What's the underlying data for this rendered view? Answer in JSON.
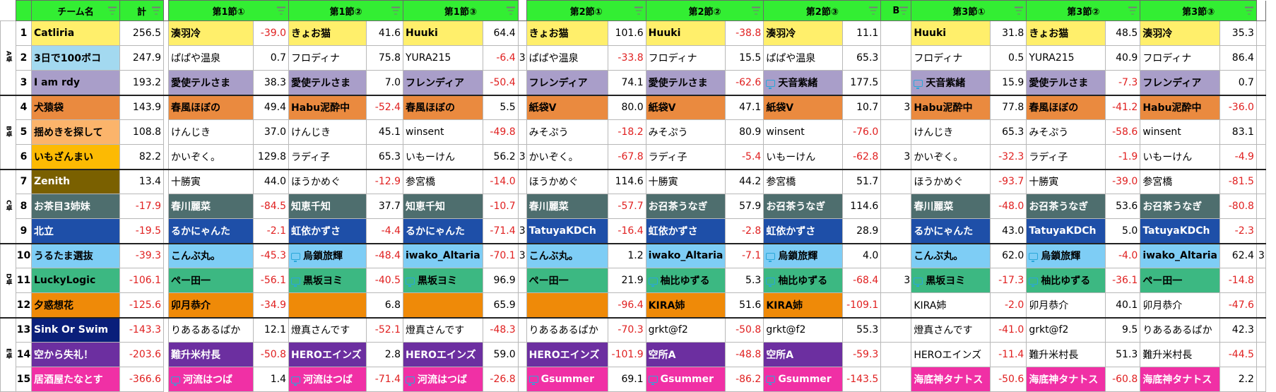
{
  "header": {
    "team": "チーム名",
    "total": "計",
    "s1": "第1節①",
    "s2": "第1節②",
    "s3": "第1節③",
    "s4": "第2節①",
    "s5": "第2節②",
    "s6": "第2節③",
    "b": "B",
    "s7": "第3節①",
    "s8": "第3節②",
    "s9": "第3節③"
  },
  "groups": [
    {
      "label": "A卓",
      "rows": 3
    },
    {
      "label": "B卓",
      "rows": 3
    },
    {
      "label": "C卓",
      "rows": 3
    },
    {
      "label": "D卓",
      "rows": 3
    },
    {
      "label": "E卓",
      "rows": 3
    }
  ],
  "colors": {
    "header_green": "#33ee33",
    "negative": "#e02020",
    "yellow": "#ffef6b",
    "lightblue": "#a3d9f0",
    "lavender": "#a99ec9",
    "orange": "#ea8a3f",
    "peach": "#fbb46b",
    "amber": "#fcba03",
    "olive": "#7a6000",
    "teal": "#4e6e6e",
    "navy": "#1e4fa8",
    "sky": "#7ecdf5",
    "green": "#3cb882",
    "darkorange": "#ef8a08",
    "darkblue": "#0a1f7a",
    "purple": "#6c2fa0",
    "pink": "#f030a5"
  },
  "rows": [
    {
      "rank": "1",
      "team": "Catliria",
      "tc": "yellow",
      "total": "256.5",
      "g": [
        [
          "湊羽冷",
          "-39.0",
          "yellow"
        ],
        [
          "きょお猫",
          "41.6",
          "yellow"
        ],
        [
          "Huuki",
          "64.4",
          "yellow"
        ],
        [
          "きょお猫",
          "101.6",
          "yellow"
        ],
        [
          "Huuki",
          "-38.8",
          "yellow"
        ],
        [
          "湊羽冷",
          "11.1",
          "yellow"
        ],
        [
          "Huuki",
          "31.8",
          "yellow"
        ],
        [
          "きょお猫",
          "48.5",
          "yellow"
        ],
        [
          "湊羽冷",
          "35.3",
          "yellow"
        ]
      ],
      "b1": "",
      "b2": "",
      "b3": ""
    },
    {
      "rank": "2",
      "team": "3日で100ボコ",
      "tc": "lightblue",
      "total": "247.9",
      "g": [
        [
          "ぱぱや温泉",
          "0.7",
          ""
        ],
        [
          "フロディナ",
          "75.8",
          ""
        ],
        [
          "YURA215",
          "-6.4",
          ""
        ],
        [
          "ぱぱや温泉",
          "-33.8",
          ""
        ],
        [
          "フロディナ",
          "15.5",
          ""
        ],
        [
          "ぱぱや温泉",
          "65.3",
          ""
        ],
        [
          "フロディナ",
          "0.5",
          ""
        ],
        [
          "YURA215",
          "40.9",
          ""
        ],
        [
          "フロディナ",
          "86.4",
          ""
        ]
      ],
      "b1": "3",
      "b2": "",
      "b3": ""
    },
    {
      "rank": "3",
      "team": "I am rdy",
      "tc": "lavender",
      "total": "193.2",
      "g": [
        [
          "愛使テルさま",
          "38.3",
          "lavender"
        ],
        [
          "愛使テルさま",
          "7.0",
          "lavender"
        ],
        [
          "フレンディア",
          "-50.4",
          "lavender"
        ],
        [
          "フレンディア",
          "74.1",
          "lavender"
        ],
        [
          "愛使テルさま",
          "-62.6",
          "lavender"
        ],
        [
          "天音紫緒",
          "177.5",
          "lavender"
        ],
        [
          "天音紫緒",
          "15.9",
          "lavender"
        ],
        [
          "愛使テルさま",
          "-7.3",
          "lavender"
        ],
        [
          "フレンディア",
          "0.7",
          "lavender"
        ]
      ],
      "b1": "",
      "b2": "",
      "b3": ""
    },
    {
      "rank": "4",
      "team": "犬猿袋",
      "tc": "orange",
      "total": "143.9",
      "g": [
        [
          "春風ほぼの",
          "49.4",
          "orange"
        ],
        [
          "Habu泥酔中",
          "-52.4",
          "orange"
        ],
        [
          "春風ほぼの",
          "5.5",
          "orange"
        ],
        [
          "紙袋V",
          "80.0",
          "orange"
        ],
        [
          "紙袋V",
          "47.1",
          "orange"
        ],
        [
          "紙袋V",
          "10.7",
          "orange"
        ],
        [
          "Habu泥酔中",
          "77.8",
          "orange"
        ],
        [
          "春風ほぼの",
          "-41.2",
          "orange"
        ],
        [
          "Habu泥酔中",
          "-36.0",
          "orange"
        ]
      ],
      "b1": "",
      "b2": "3",
      "b3": ""
    },
    {
      "rank": "5",
      "team": "揺めきを探して",
      "tc": "peach",
      "total": "108.8",
      "g": [
        [
          "けんじき",
          "37.0",
          ""
        ],
        [
          "けんじき",
          "45.1",
          ""
        ],
        [
          "winsent",
          "-49.8",
          ""
        ],
        [
          "みそぷう",
          "-18.2",
          ""
        ],
        [
          "みそぷう",
          "80.9",
          ""
        ],
        [
          "winsent",
          "-76.0",
          ""
        ],
        [
          "けんじき",
          "65.3",
          ""
        ],
        [
          "みそぷう",
          "-58.6",
          ""
        ],
        [
          "winsent",
          "83.1",
          ""
        ]
      ],
      "b1": "",
      "b2": "",
      "b3": ""
    },
    {
      "rank": "6",
      "team": "いもざんまい",
      "tc": "amber",
      "total": "82.2",
      "g": [
        [
          "かいぞく。",
          "129.8",
          ""
        ],
        [
          "ラディ子",
          "65.3",
          ""
        ],
        [
          "いもーけん",
          "56.2",
          ""
        ],
        [
          "かいぞく。",
          "-67.8",
          ""
        ],
        [
          "ラディ子",
          "-5.4",
          ""
        ],
        [
          "いもーけん",
          "-62.8",
          ""
        ],
        [
          "かいぞく。",
          "-32.3",
          ""
        ],
        [
          "ラディ子",
          "-1.9",
          ""
        ],
        [
          "いもーけん",
          "-4.9",
          ""
        ]
      ],
      "b1": "3",
      "b2": "3",
      "b3": ""
    },
    {
      "rank": "7",
      "team": "Zenith",
      "tc": "olive",
      "total": "13.4",
      "g": [
        [
          "十勝寅",
          "44.0",
          ""
        ],
        [
          "ほうかめぐ",
          "-12.9",
          ""
        ],
        [
          "参宮橋",
          "-14.0",
          ""
        ],
        [
          "ほうかめぐ",
          "114.6",
          ""
        ],
        [
          "十勝寅",
          "44.2",
          ""
        ],
        [
          "参宮橋",
          "51.7",
          ""
        ],
        [
          "ほうかめぐ",
          "-93.7",
          ""
        ],
        [
          "十勝寅",
          "-39.0",
          ""
        ],
        [
          "参宮橋",
          "-81.5",
          ""
        ]
      ],
      "b1": "",
      "b2": "",
      "b3": ""
    },
    {
      "rank": "8",
      "team": "お茶目3姉妹",
      "tc": "teal",
      "total": "-17.9",
      "g": [
        [
          "春川麗菜",
          "-84.5",
          "teal"
        ],
        [
          "知恵千知",
          "37.7",
          "teal"
        ],
        [
          "知恵千知",
          "-10.7",
          "teal"
        ],
        [
          "春川麗菜",
          "-57.7",
          "teal"
        ],
        [
          "お召茶うなぎ",
          "57.9",
          "teal"
        ],
        [
          "お召茶うなぎ",
          "114.6",
          "teal"
        ],
        [
          "春川麗菜",
          "-48.0",
          "teal"
        ],
        [
          "お召茶うなぎ",
          "53.6",
          "teal"
        ],
        [
          "お召茶うなぎ",
          "-80.8",
          "teal"
        ]
      ],
      "b1": "",
      "b2": "",
      "b3": ""
    },
    {
      "rank": "9",
      "team": "北立",
      "tc": "navy",
      "total": "-19.5",
      "g": [
        [
          "るかにゃんた",
          "-2.1",
          "navy"
        ],
        [
          "虹依かずさ",
          "-4.4",
          "navy"
        ],
        [
          "るかにゃんた",
          "-71.4",
          "navy"
        ],
        [
          "TatuyaKDCh",
          "-16.4",
          "navy"
        ],
        [
          "虹依かずさ",
          "-2.8",
          "navy"
        ],
        [
          "虹依かずさ",
          "28.9",
          "navy"
        ],
        [
          "るかにゃんた",
          "43.0",
          "navy"
        ],
        [
          "TatuyaKDCh",
          "5.0",
          "navy"
        ],
        [
          "TatuyaKDCh",
          "-2.3",
          "navy"
        ]
      ],
      "b1": "3",
      "b2": "",
      "b3": ""
    },
    {
      "rank": "10",
      "team": "うるたま選抜",
      "tc": "sky",
      "total": "-39.3",
      "g": [
        [
          "こんぶ丸。",
          "-45.3",
          "sky"
        ],
        [
          "烏鎖旅輝",
          "-48.4",
          "sky"
        ],
        [
          "iwako_Altaria",
          "-70.1",
          "sky"
        ],
        [
          "こんぶ丸。",
          "1.2",
          "sky"
        ],
        [
          "iwako_Altaria",
          "-7.1",
          "sky"
        ],
        [
          "烏鎖旅輝",
          "4.0",
          "sky"
        ],
        [
          "こんぶ丸。",
          "62.0",
          "sky"
        ],
        [
          "烏鎖旅輝",
          "-4.0",
          "sky"
        ],
        [
          "iwako_Altaria",
          "62.4",
          "sky"
        ]
      ],
      "b1": "3",
      "b2": "",
      "b3": "3"
    },
    {
      "rank": "11",
      "team": "LuckyLogic",
      "tc": "green",
      "total": "-106.1",
      "g": [
        [
          "ぺー田一",
          "-56.1",
          "green"
        ],
        [
          "黒坂ヨミ",
          "-40.5",
          "green"
        ],
        [
          "黒坂ヨミ",
          "96.9",
          "green"
        ],
        [
          "ぺー田一",
          "21.9",
          "green"
        ],
        [
          "柚比ゆずる",
          "5.3",
          "green"
        ],
        [
          "柚比ゆずる",
          "-68.4",
          "green"
        ],
        [
          "黒坂ヨミ",
          "-17.3",
          "green"
        ],
        [
          "柚比ゆずる",
          "-36.1",
          "green"
        ],
        [
          "ぺー田一",
          "-14.8",
          "green"
        ]
      ],
      "b1": "",
      "b2": "3",
      "b3": ""
    },
    {
      "rank": "12",
      "team": "夕惑想花",
      "tc": "darkorange",
      "total": "-125.6",
      "g": [
        [
          "卯月恭介",
          "-34.9",
          "darkorange"
        ],
        [
          "",
          "6.8",
          "darkorange"
        ],
        [
          "",
          "65.9",
          "darkorange"
        ],
        [
          "",
          "-96.4",
          "darkorange"
        ],
        [
          "KIRA姉",
          "51.6",
          "darkorange"
        ],
        [
          "KIRA姉",
          "-109.1",
          "darkorange"
        ],
        [
          "KIRA姉",
          "-2.0",
          ""
        ],
        [
          "卯月恭介",
          "40.1",
          ""
        ],
        [
          "卯月恭介",
          "-47.6",
          ""
        ]
      ],
      "b1": "",
      "b2": "",
      "b3": ""
    },
    {
      "rank": "13",
      "team": "Sink Or Swim",
      "tc": "darkblue",
      "total": "-143.3",
      "g": [
        [
          "りあるあるぱか",
          "12.1",
          ""
        ],
        [
          "燈真さんです",
          "-52.1",
          ""
        ],
        [
          "燈真さんです",
          "-48.3",
          ""
        ],
        [
          "りあるあるぱか",
          "-70.3",
          ""
        ],
        [
          "grkt@f2",
          "-50.8",
          ""
        ],
        [
          "grkt@f2",
          "55.3",
          ""
        ],
        [
          "燈真さんです",
          "-41.0",
          ""
        ],
        [
          "grkt@f2",
          "9.5",
          ""
        ],
        [
          "りあるあるぱか",
          "42.3",
          ""
        ]
      ],
      "b1": "",
      "b2": "",
      "b3": ""
    },
    {
      "rank": "14",
      "team": "空から失礼！",
      "tc": "purple",
      "total": "-203.6",
      "g": [
        [
          "難升米村長",
          "-50.8",
          "purple"
        ],
        [
          "HEROエインズ",
          "2.8",
          "purple"
        ],
        [
          "HEROエインズ",
          "59.0",
          "purple"
        ],
        [
          "HEROエインズ",
          "-101.9",
          "purple"
        ],
        [
          "空所A",
          "-48.8",
          "purple"
        ],
        [
          "空所A",
          "-59.3",
          "purple"
        ],
        [
          "HEROエインズ",
          "-11.4",
          ""
        ],
        [
          "難升米村長",
          "51.3",
          ""
        ],
        [
          "難升米村長",
          "-44.5",
          ""
        ]
      ],
      "b1": "",
      "b2": "",
      "b3": ""
    },
    {
      "rank": "15",
      "team": "居酒屋たなとす",
      "tc": "pink",
      "total": "-366.6",
      "g": [
        [
          "河流はつば",
          "1.4",
          "pink"
        ],
        [
          "河流はつば",
          "-71.4",
          "pink"
        ],
        [
          "河流はつば",
          "-26.8",
          "pink"
        ],
        [
          "Gsummer",
          "69.1",
          "pink"
        ],
        [
          "Gsummer",
          "-86.2",
          "pink"
        ],
        [
          "Gsummer",
          "-143.5",
          "pink"
        ],
        [
          "海底神タナトス",
          "-50.6",
          "pink"
        ],
        [
          "海底神タナトス",
          "-60.8",
          "pink"
        ],
        [
          "海底神タナトス",
          "2.2",
          "pink"
        ]
      ],
      "b1": "",
      "b2": "",
      "b3": ""
    }
  ]
}
